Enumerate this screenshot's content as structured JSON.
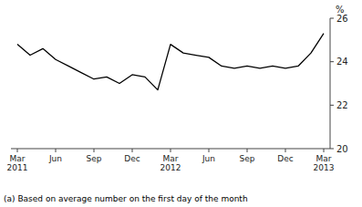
{
  "chart_data": {
    "type": "line",
    "ylabel": "%",
    "footnote": "(a) Based on average number on the first day of the month",
    "categories": [
      "Mar\n2011",
      null,
      null,
      "Jun",
      null,
      null,
      "Sep",
      null,
      null,
      "Dec",
      null,
      null,
      "Mar\n2012",
      null,
      null,
      "Jun",
      null,
      null,
      "Sep",
      null,
      null,
      "Dec",
      null,
      null,
      "Mar\n2013"
    ],
    "values": [
      24.8,
      24.3,
      24.6,
      24.1,
      23.8,
      23.5,
      23.2,
      23.3,
      23.0,
      23.4,
      23.3,
      22.7,
      24.8,
      24.4,
      24.3,
      24.2,
      23.8,
      23.7,
      23.8,
      23.7,
      23.8,
      23.7,
      23.8,
      24.4,
      25.3
    ],
    "color": "#000000",
    "ylim": [
      20,
      26
    ],
    "yticks": [
      20,
      22,
      24,
      26
    ],
    "grid": false
  }
}
